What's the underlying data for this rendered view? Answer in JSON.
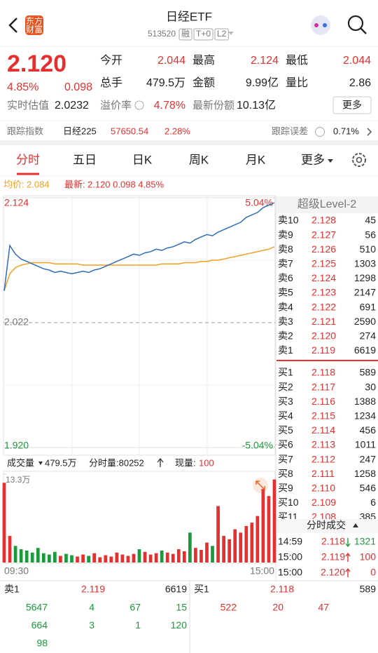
{
  "header": {
    "title": "日经ETF",
    "code": "513520",
    "badges": [
      "融",
      "T+0",
      "L2"
    ],
    "logo": [
      "东方",
      "财富"
    ]
  },
  "quote": {
    "price": "2.120",
    "change_pct": "4.85%",
    "change": "0.098",
    "fields": [
      {
        "label": "今开",
        "value": "2.044"
      },
      {
        "label": "最高",
        "value": "2.124"
      },
      {
        "label": "最低",
        "value": "2.044"
      },
      {
        "label": "总手",
        "value": "479.5万"
      },
      {
        "label": "金额",
        "value": "9.99亿"
      },
      {
        "label": "量比",
        "value": "2.86"
      }
    ],
    "estimate_label": "实时估值",
    "estimate_value": "2.0232",
    "premium_label": "溢价率",
    "premium_value": "4.78%",
    "shares_label": "最新份额",
    "shares_value": "10.13亿",
    "more_button": "更多"
  },
  "tracking": {
    "index_label": "跟踪指数",
    "index_name": "日经225",
    "index_value": "57650.54",
    "index_change": "2.28%",
    "error_label": "跟踪误差",
    "error_value": "0.71%"
  },
  "tabs": [
    "分时",
    "五日",
    "日K",
    "周K",
    "月K",
    "更多"
  ],
  "legend": {
    "avg_value": "2.084",
    "latest_values": "2.120 0.098 4.85%"
  },
  "volume_header": {
    "total": "479.5万",
    "tick_label": "分时量:80252",
    "current_label": "现量:",
    "current_value": "100"
  },
  "chart_data": {
    "type": "line",
    "categories": [
      "09:30",
      null,
      null,
      null,
      null,
      null,
      null,
      null,
      null,
      null,
      null,
      null,
      null,
      null,
      null,
      null,
      null,
      null,
      null,
      null,
      null,
      null,
      null,
      null,
      null,
      null,
      null,
      null,
      null,
      null,
      null,
      null,
      null,
      null,
      null,
      null,
      null,
      null,
      null,
      null,
      null,
      null,
      null,
      null,
      null,
      null,
      null,
      null,
      "15:00"
    ],
    "ylim": [
      1.92,
      2.124
    ],
    "yticks": [
      {
        "value": 1.92,
        "label": "1.920"
      },
      2.022,
      2.124
    ],
    "pct_ticks": [
      {
        "value": 1.92,
        "label": "-5.04%"
      },
      {
        "value": 2.124,
        "label": "5.04%"
      }
    ],
    "y2lim": [
      0,
      133000
    ],
    "y2ticks": [
      {
        "value": 133000,
        "label": "13.3万"
      }
    ],
    "series": [
      {
        "name": "均价:",
        "color": "#f0a020",
        "values": [
          2.048,
          2.062,
          2.067,
          2.069,
          2.07,
          2.071,
          2.071,
          2.071,
          2.071,
          2.07,
          2.07,
          2.07,
          2.07,
          2.07,
          2.069,
          2.069,
          2.069,
          2.069,
          2.069,
          2.069,
          2.069,
          2.069,
          2.069,
          2.069,
          2.069,
          2.069,
          2.069,
          2.069,
          2.07,
          2.07,
          2.07,
          2.07,
          2.071,
          2.071,
          2.071,
          2.072,
          2.072,
          2.073,
          2.073,
          2.074,
          2.075,
          2.076,
          2.077,
          2.078,
          2.079,
          2.08,
          2.081,
          2.082,
          2.084
        ]
      },
      {
        "name": "最新:",
        "color": "#2f6db5",
        "values": [
          2.048,
          2.085,
          2.078,
          2.074,
          2.072,
          2.07,
          2.068,
          2.066,
          2.065,
          2.063,
          2.064,
          2.063,
          2.062,
          2.063,
          2.064,
          2.063,
          2.065,
          2.066,
          2.068,
          2.07,
          2.072,
          2.074,
          2.076,
          2.078,
          2.077,
          2.079,
          2.08,
          2.082,
          2.081,
          2.083,
          2.084,
          2.086,
          2.088,
          2.087,
          2.09,
          2.092,
          2.094,
          2.093,
          2.096,
          2.098,
          2.1,
          2.102,
          2.104,
          2.108,
          2.11,
          2.112,
          2.116,
          2.118,
          2.12
        ]
      },
      {
        "name": "成交量",
        "type": "bar",
        "axis": "y2",
        "colors": [
          "#e5302f",
          "#1a9a3b"
        ],
        "values": [
          120000,
          40000,
          25000,
          20000,
          18000,
          15000,
          22000,
          14000,
          12000,
          16000,
          10000,
          13000,
          11000,
          9000,
          12000,
          10000,
          14000,
          8000,
          11000,
          9000,
          15000,
          12000,
          10000,
          13000,
          20000,
          16000,
          12000,
          14000,
          18000,
          15000,
          13000,
          20000,
          17000,
          45000,
          22000,
          19000,
          30000,
          25000,
          85000,
          40000,
          35000,
          50000,
          45000,
          55000,
          60000,
          70000,
          110000,
          100000,
          125000
        ]
      }
    ]
  },
  "order_book": {
    "title": "超级Level-2",
    "asks": [
      {
        "label": "卖10",
        "price": "2.128",
        "volume": "45"
      },
      {
        "label": "卖9",
        "price": "2.127",
        "volume": "56"
      },
      {
        "label": "卖8",
        "price": "2.126",
        "volume": "510"
      },
      {
        "label": "卖7",
        "price": "2.125",
        "volume": "1303"
      },
      {
        "label": "卖6",
        "price": "2.124",
        "volume": "1298"
      },
      {
        "label": "卖5",
        "price": "2.123",
        "volume": "2147"
      },
      {
        "label": "卖4",
        "price": "2.122",
        "volume": "691"
      },
      {
        "label": "卖3",
        "price": "2.121",
        "volume": "2590"
      },
      {
        "label": "卖2",
        "price": "2.120",
        "volume": "274"
      },
      {
        "label": "卖1",
        "price": "2.119",
        "volume": "6619"
      }
    ],
    "bids": [
      {
        "label": "买1",
        "price": "2.118",
        "volume": "589"
      },
      {
        "label": "买2",
        "price": "2.117",
        "volume": "30"
      },
      {
        "label": "买3",
        "price": "2.116",
        "volume": "1388"
      },
      {
        "label": "买4",
        "price": "2.115",
        "volume": "1234"
      },
      {
        "label": "买5",
        "price": "2.114",
        "volume": "456"
      },
      {
        "label": "买6",
        "price": "2.113",
        "volume": "1011"
      },
      {
        "label": "买7",
        "price": "2.112",
        "volume": "247"
      },
      {
        "label": "买8",
        "price": "2.111",
        "volume": "1258"
      },
      {
        "label": "买9",
        "price": "2.110",
        "volume": "546"
      },
      {
        "label": "买10",
        "price": "2.109",
        "volume": "6"
      },
      {
        "label": "买11",
        "price": "2.108",
        "volume": "385"
      }
    ],
    "trades_title": "分时成交",
    "trades": [
      {
        "time": "14:59",
        "price": "2.118",
        "side": "down",
        "volume": "1321"
      },
      {
        "time": "15:00",
        "price": "2.119",
        "side": "up",
        "volume": "100"
      },
      {
        "time": "15:00",
        "price": "2.120",
        "side": "up",
        "volume": "0"
      }
    ]
  },
  "bottom": {
    "ask1": {
      "label": "卖1",
      "price": "2.119",
      "volume": "6619"
    },
    "bid1": {
      "label": "买1",
      "price": "2.118",
      "volume": "589"
    },
    "ask_queue": [
      [
        "5647",
        "4",
        "67",
        "15"
      ],
      [
        "664",
        "3",
        "1",
        "120"
      ],
      [
        "98"
      ]
    ],
    "bid_queue": [
      [
        "522",
        "20",
        "47"
      ]
    ]
  }
}
